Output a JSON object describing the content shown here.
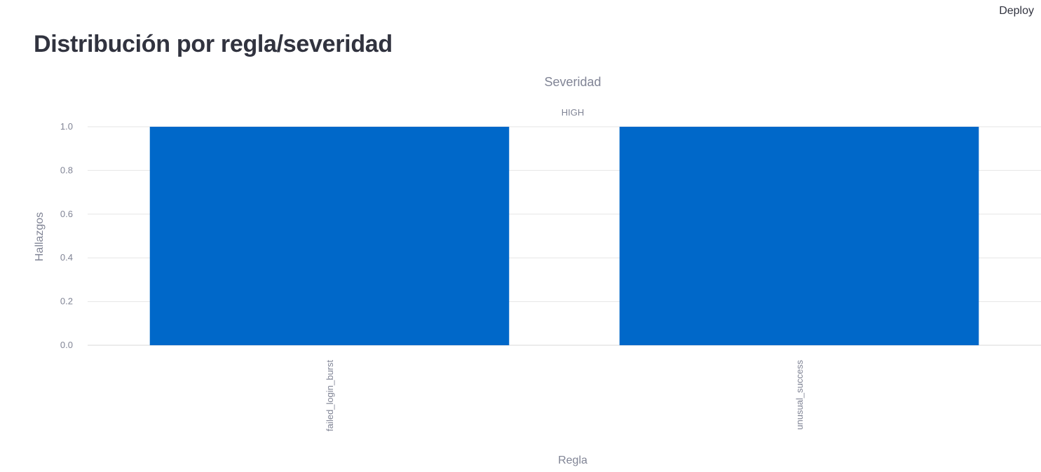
{
  "header": {
    "deploy_label": "Deploy"
  },
  "page": {
    "title": "Distribución por regla/severidad"
  },
  "colors": {
    "bar": "#0068c9",
    "grid": "#e6e6e6",
    "axis_text": "#808495",
    "title_text": "#31333f"
  },
  "chart_data": {
    "type": "bar",
    "legend_title": "Severidad",
    "facet_label": "HIGH",
    "xlabel": "Regla",
    "ylabel": "Hallazgos",
    "categories": [
      "failed_login_burst",
      "unusual_success"
    ],
    "series": [
      {
        "name": "HIGH",
        "values": [
          1,
          1
        ]
      }
    ],
    "ylim": [
      0,
      1
    ],
    "yticks": [
      "0.0",
      "0.2",
      "0.4",
      "0.6",
      "0.8",
      "1.0"
    ],
    "grid": true
  }
}
